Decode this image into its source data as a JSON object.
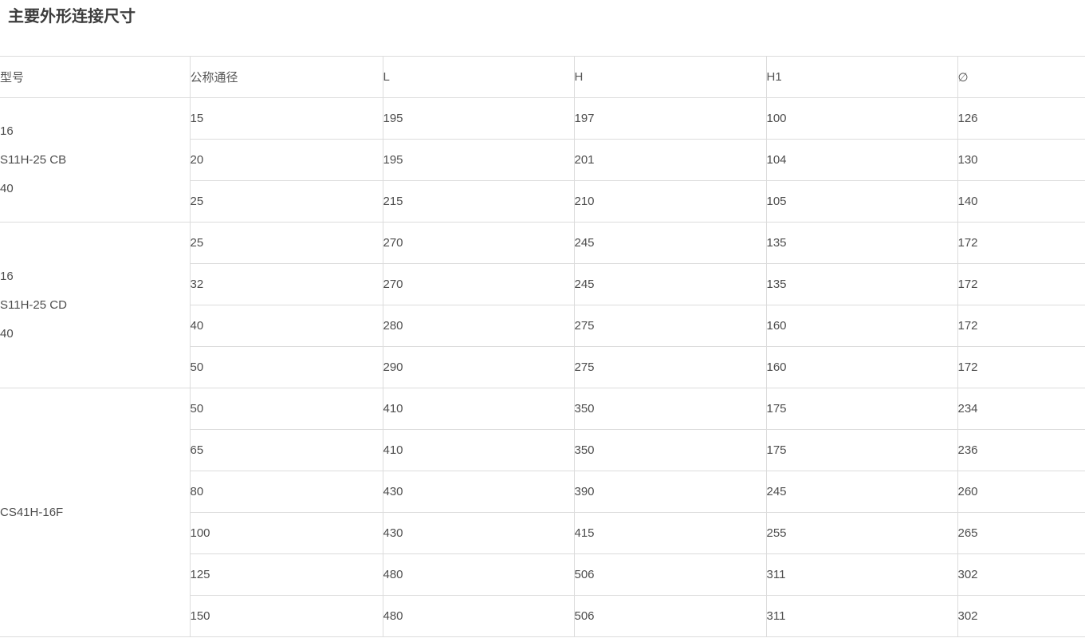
{
  "page": {
    "title": "主要外形连接尺寸"
  },
  "table": {
    "headers": [
      "型号",
      "公称通径",
      "L",
      "H",
      "H1",
      "∅"
    ],
    "groups": [
      {
        "model_lines": [
          "16",
          "S11H-25 CB",
          "40"
        ],
        "rows": [
          [
            "15",
            "195",
            "197",
            "100",
            "126"
          ],
          [
            "20",
            "195",
            "201",
            "104",
            "130"
          ],
          [
            "25",
            "215",
            "210",
            "105",
            "140"
          ]
        ]
      },
      {
        "model_lines": [
          "16",
          "S11H-25 CD",
          "40"
        ],
        "rows": [
          [
            "25",
            "270",
            "245",
            "135",
            "172"
          ],
          [
            "32",
            "270",
            "245",
            "135",
            "172"
          ],
          [
            "40",
            "280",
            "275",
            "160",
            "172"
          ],
          [
            "50",
            "290",
            "275",
            "160",
            "172"
          ]
        ]
      },
      {
        "model_lines": [
          "CS41H-16F"
        ],
        "rows": [
          [
            "50",
            "410",
            "350",
            "175",
            "234"
          ],
          [
            "65",
            "410",
            "350",
            "175",
            "236"
          ],
          [
            "80",
            "430",
            "390",
            "245",
            "260"
          ],
          [
            "100",
            "430",
            "415",
            "255",
            "265"
          ],
          [
            "125",
            "480",
            "506",
            "311",
            "302"
          ],
          [
            "150",
            "480",
            "506",
            "311",
            "302"
          ]
        ]
      }
    ]
  },
  "colors": {
    "border": "#dcdcdc",
    "title_text": "#3d3d3d",
    "header_text": "#555555",
    "cell_text": "#4d4d4d",
    "background": "#ffffff"
  }
}
